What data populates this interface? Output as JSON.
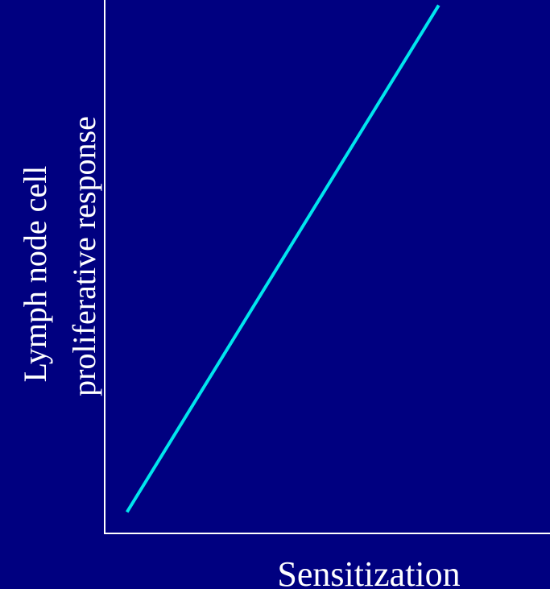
{
  "chart_data": {
    "type": "line",
    "title": "",
    "xlabel": "Sensitization",
    "ylabel_lines": [
      "Lymph node cell",
      "proliferative response"
    ],
    "xlim": [
      0,
      1
    ],
    "ylim": [
      0,
      1
    ],
    "grid": false,
    "series": [
      {
        "color": "#00e5ee",
        "x": [
          0.05,
          0.75
        ],
        "y": [
          0.04,
          0.99
        ]
      }
    ]
  },
  "colors": {
    "background": "#000080",
    "axis": "#ffffff",
    "text": "#ffffff"
  }
}
